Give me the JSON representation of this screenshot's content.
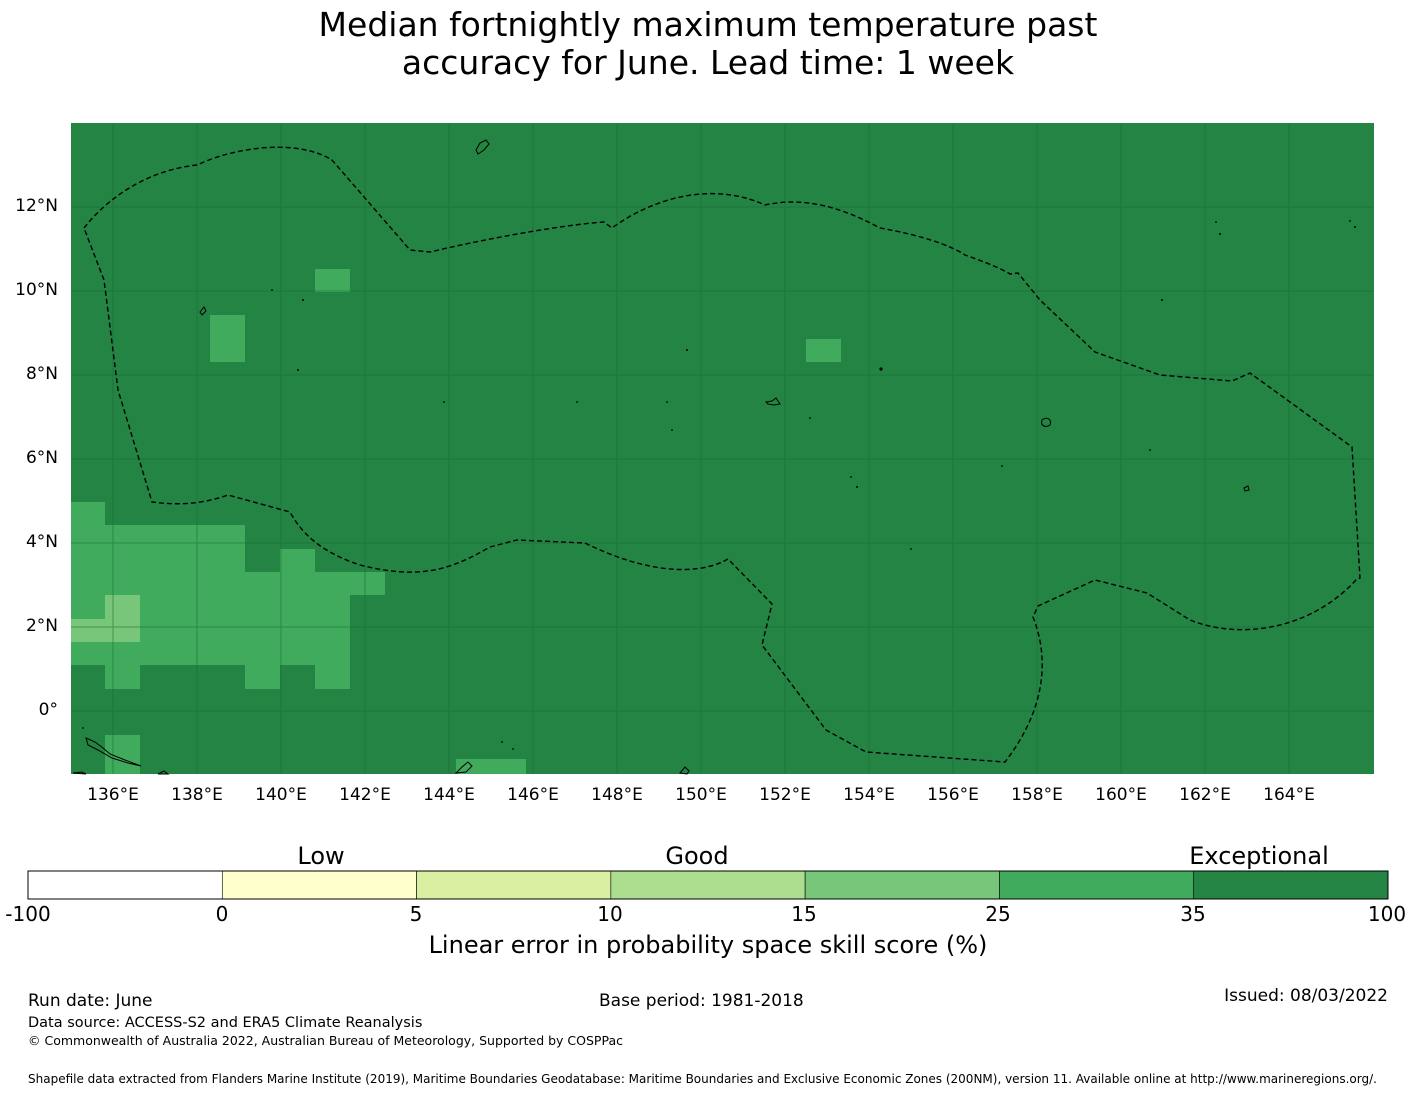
{
  "title_line1": "Median fortnightly maximum temperature past",
  "title_line2": "accuracy for June. Lead time: 1 week",
  "map": {
    "lon_ticks": [
      "136°E",
      "138°E",
      "140°E",
      "142°E",
      "144°E",
      "146°E",
      "148°E",
      "150°E",
      "152°E",
      "154°E",
      "156°E",
      "158°E",
      "160°E",
      "162°E",
      "164°E"
    ],
    "lat_ticks": [
      "12°N",
      "10°N",
      "8°N",
      "6°N",
      "4°N",
      "2°N",
      "0°"
    ],
    "colors": {
      "exceptional": "#238443",
      "good_high": "#41ab5d",
      "good_mid": "#78c679"
    }
  },
  "colorbar": {
    "category_labels": [
      "Low",
      "Good",
      "Exceptional"
    ],
    "tick_labels": [
      "-100",
      "0",
      "5",
      "10",
      "15",
      "25",
      "35",
      "100"
    ],
    "colors": [
      "#ffffff",
      "#ffffcc",
      "#d9f0a3",
      "#addd8e",
      "#78c679",
      "#41ab5d",
      "#238443"
    ],
    "label": "Linear error in probability space skill score (%)"
  },
  "footer": {
    "run_date": "Run date: June",
    "base_period": "Base period: 1981-2018",
    "issued": "Issued: 08/03/2022",
    "data_source": "Data source: ACCESS-S2 and ERA5 Climate Reanalysis",
    "copyright": "© Commonwealth of Australia 2022, Australian Bureau of Meteorology, Supported by COSPPac",
    "shapefile": "Shapefile data extracted from Flanders Marine Institute (2019), Maritime Boundaries Geodatabase: Maritime Boundaries and Exclusive Economic Zones (200NM), version 11. Available online at http://www.marineregions.org/."
  }
}
